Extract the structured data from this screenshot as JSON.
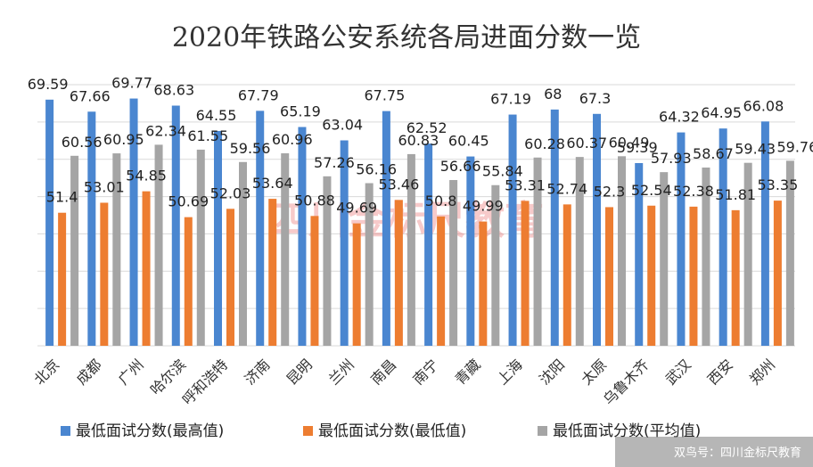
{
  "watermark": "四川金标尺教育",
  "credit": "双鸟号：四川金标尺教育",
  "colors": {
    "max": "#4a86d0",
    "min": "#ed7d31",
    "avg": "#a5a5a5",
    "grid": "#d9d9d9"
  },
  "chart_data": {
    "type": "bar",
    "title": "2020年铁路公安系统各局进面分数一览",
    "xlabel": "",
    "ylabel": "",
    "ylim": [
      30,
      72
    ],
    "grid": true,
    "legend_position": "bottom",
    "categories": [
      "北京",
      "成都",
      "广州",
      "哈尔滨",
      "呼和浩特",
      "济南",
      "昆明",
      "兰州",
      "南昌",
      "南宁",
      "青藏",
      "上海",
      "沈阳",
      "太原",
      "乌鲁木齐",
      "武汉",
      "西安",
      "郑州"
    ],
    "series": [
      {
        "name": "最低面试分数(最高值)",
        "values": [
          69.59,
          67.66,
          69.77,
          68.63,
          64.55,
          67.79,
          65.19,
          63.04,
          67.75,
          62.52,
          60.45,
          67.19,
          68,
          67.3,
          59.39,
          64.32,
          64.95,
          66.08
        ]
      },
      {
        "name": "最低面试分数(最低值)",
        "values": [
          51.4,
          53.01,
          54.85,
          50.69,
          52.03,
          53.64,
          50.88,
          49.69,
          53.46,
          50.8,
          49.99,
          53.31,
          52.74,
          52.3,
          52.54,
          52.38,
          51.81,
          53.35
        ]
      },
      {
        "name": "最低面试分数(平均值)",
        "values": [
          60.56,
          60.95,
          62.34,
          61.55,
          59.56,
          60.96,
          57.26,
          56.16,
          60.83,
          56.66,
          55.84,
          60.28,
          60.37,
          60.49,
          57.93,
          58.67,
          59.43,
          59.76
        ]
      }
    ]
  }
}
